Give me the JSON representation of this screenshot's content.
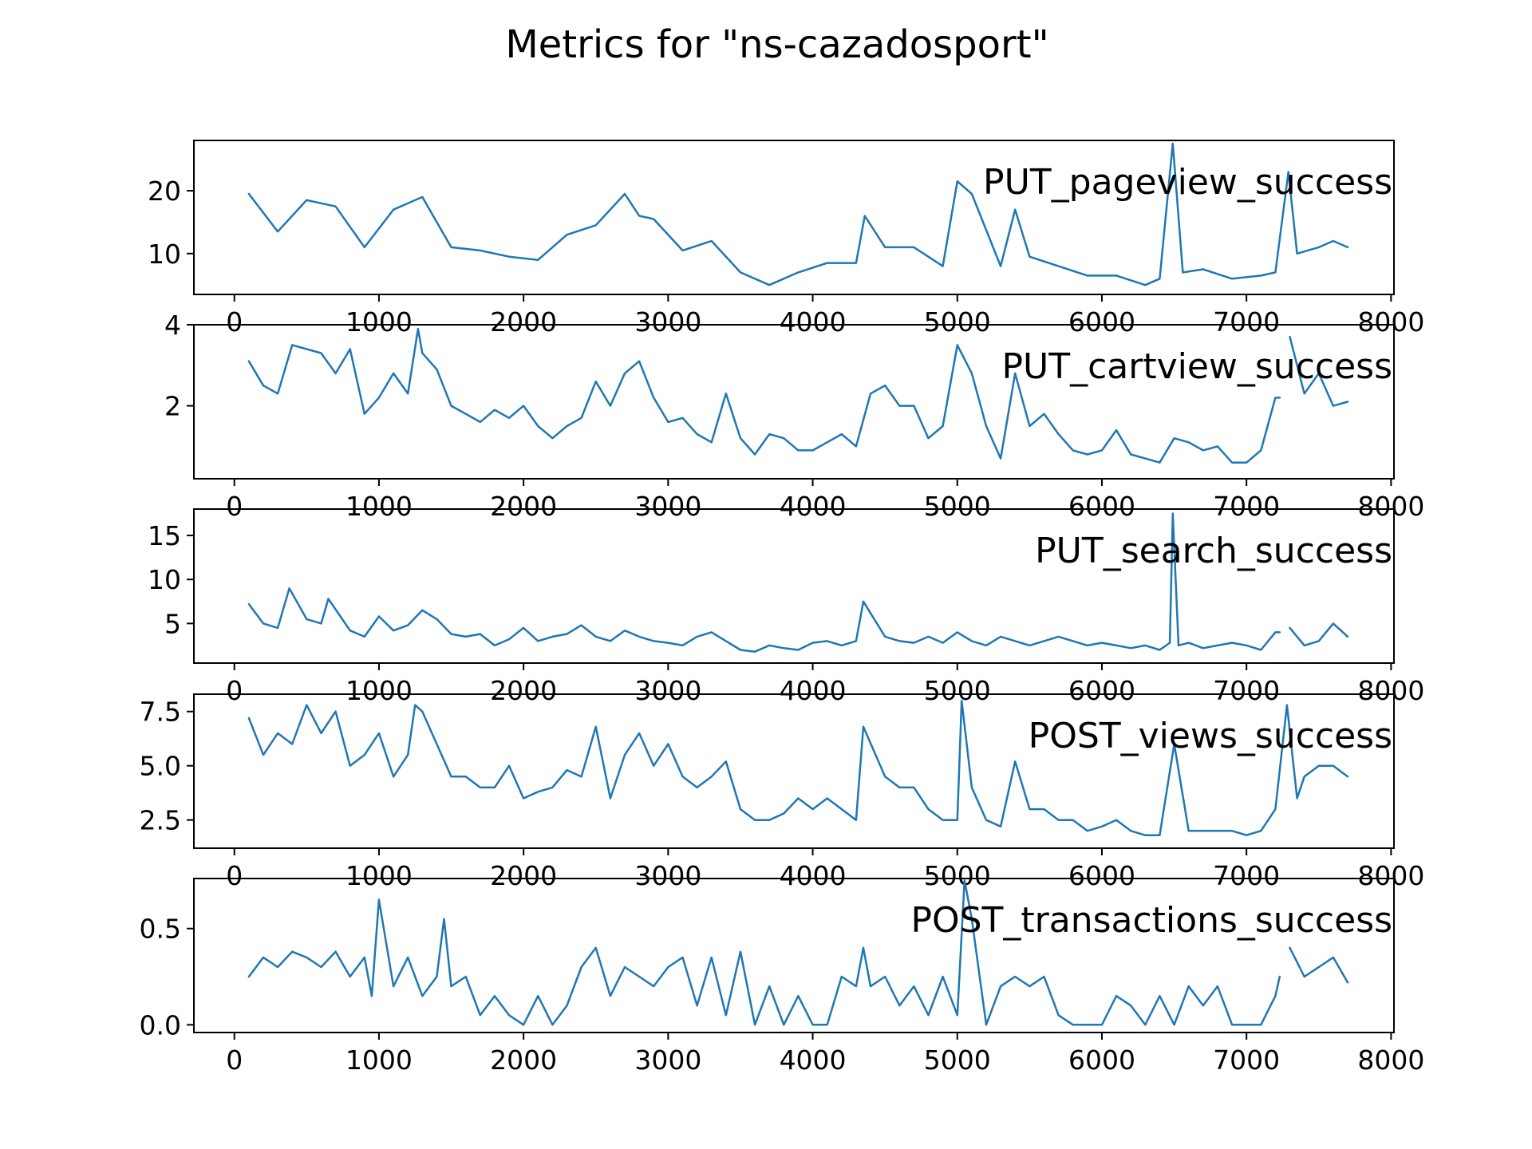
{
  "title": "Metrics for \"ns-cazadosport\"",
  "line_color": "#1f77b4",
  "chart_data": [
    {
      "type": "line",
      "name": "PUT_pageview_success",
      "xlim": [
        -280,
        8020
      ],
      "ylim": [
        3.5,
        28.0
      ],
      "xticks": [
        0,
        1000,
        2000,
        3000,
        4000,
        5000,
        6000,
        7000,
        8000
      ],
      "yticks": [
        10,
        20
      ],
      "ytick_labels": [
        "10",
        "20"
      ],
      "x": [
        100,
        300,
        500,
        700,
        900,
        1100,
        1300,
        1500,
        1700,
        1900,
        2100,
        2300,
        2500,
        2700,
        2800,
        2900,
        3100,
        3300,
        3500,
        3700,
        3900,
        4100,
        4300,
        4360,
        4500,
        4700,
        4900,
        5000,
        5100,
        5300,
        5400,
        5500,
        5700,
        5900,
        6100,
        6300,
        6400,
        6490,
        6560,
        6700,
        6900,
        7100,
        7200,
        7290,
        7350,
        7500,
        7600,
        7700
      ],
      "values": [
        19.5,
        13.5,
        18.5,
        17.5,
        11.0,
        17.0,
        19.0,
        11.0,
        10.5,
        9.5,
        9.0,
        13.0,
        14.5,
        19.5,
        16.0,
        15.5,
        10.5,
        12.0,
        7.0,
        5.0,
        7.0,
        8.5,
        8.5,
        16.0,
        11.0,
        11.0,
        8.0,
        21.5,
        19.5,
        8.0,
        17.0,
        9.5,
        8.0,
        6.5,
        6.5,
        5.0,
        6.0,
        27.5,
        7.0,
        7.5,
        6.0,
        6.5,
        7.0,
        23.0,
        10.0,
        11.0,
        12.0,
        11.0
      ]
    },
    {
      "type": "line",
      "name": "PUT_cartview_success",
      "xlim": [
        -280,
        8020
      ],
      "ylim": [
        0.2,
        4.0
      ],
      "xticks": [
        0,
        1000,
        2000,
        3000,
        4000,
        5000,
        6000,
        7000,
        8000
      ],
      "yticks": [
        2,
        4
      ],
      "ytick_labels": [
        "2",
        "4"
      ],
      "x": [
        100,
        200,
        300,
        400,
        500,
        600,
        700,
        800,
        900,
        1000,
        1100,
        1200,
        1270,
        1300,
        1400,
        1500,
        1600,
        1700,
        1800,
        1900,
        2000,
        2100,
        2200,
        2300,
        2400,
        2500,
        2600,
        2700,
        2800,
        2900,
        3000,
        3100,
        3200,
        3300,
        3400,
        3500,
        3600,
        3700,
        3800,
        3900,
        4000,
        4100,
        4200,
        4300,
        4400,
        4500,
        4600,
        4700,
        4800,
        4900,
        5000,
        5100,
        5200,
        5300,
        5400,
        5500,
        5600,
        5700,
        5800,
        5900,
        6000,
        6100,
        6200,
        6300,
        6400,
        6500,
        6600,
        6700,
        6800,
        6900,
        7000,
        7100,
        7200,
        7230,
        null,
        7300,
        7400,
        7500,
        7600,
        7700
      ],
      "values": [
        3.1,
        2.5,
        2.3,
        3.5,
        3.4,
        3.3,
        2.8,
        3.4,
        1.8,
        2.2,
        2.8,
        2.3,
        3.9,
        3.3,
        2.9,
        2.0,
        1.8,
        1.6,
        1.9,
        1.7,
        2.0,
        1.5,
        1.2,
        1.5,
        1.7,
        2.6,
        2.0,
        2.8,
        3.1,
        2.2,
        1.6,
        1.7,
        1.3,
        1.1,
        2.3,
        1.2,
        0.8,
        1.3,
        1.2,
        0.9,
        0.9,
        1.1,
        1.3,
        1.0,
        2.3,
        2.5,
        2.0,
        2.0,
        1.2,
        1.5,
        3.5,
        2.8,
        1.5,
        0.7,
        2.8,
        1.5,
        1.8,
        1.3,
        0.9,
        0.8,
        0.9,
        1.4,
        0.8,
        0.7,
        0.6,
        1.2,
        1.1,
        0.9,
        1.0,
        0.6,
        0.6,
        0.9,
        2.2,
        2.2,
        null,
        3.7,
        2.3,
        2.8,
        2.0,
        2.1
      ]
    },
    {
      "type": "line",
      "name": "PUT_search_success",
      "xlim": [
        -280,
        8020
      ],
      "ylim": [
        0.5,
        18.0
      ],
      "xticks": [
        0,
        1000,
        2000,
        3000,
        4000,
        5000,
        6000,
        7000,
        8000
      ],
      "yticks": [
        5,
        10,
        15
      ],
      "ytick_labels": [
        "5",
        "10",
        "15"
      ],
      "x": [
        100,
        200,
        300,
        380,
        500,
        600,
        650,
        800,
        900,
        1000,
        1100,
        1200,
        1300,
        1400,
        1500,
        1600,
        1700,
        1800,
        1900,
        2000,
        2100,
        2200,
        2300,
        2400,
        2500,
        2600,
        2700,
        2800,
        2900,
        3000,
        3100,
        3200,
        3300,
        3400,
        3500,
        3600,
        3700,
        3800,
        3900,
        4000,
        4100,
        4200,
        4300,
        4350,
        4500,
        4600,
        4700,
        4800,
        4900,
        5000,
        5100,
        5200,
        5300,
        5400,
        5500,
        5600,
        5700,
        5800,
        5900,
        6000,
        6100,
        6200,
        6300,
        6400,
        6470,
        6490,
        6530,
        6600,
        6700,
        6800,
        6900,
        7000,
        7100,
        7200,
        7230,
        null,
        7300,
        7400,
        7500,
        7600,
        7700
      ],
      "values": [
        7.2,
        5.0,
        4.5,
        9.0,
        5.5,
        5.0,
        7.8,
        4.2,
        3.5,
        5.8,
        4.2,
        4.8,
        6.5,
        5.5,
        3.8,
        3.5,
        3.8,
        2.5,
        3.2,
        4.5,
        3.0,
        3.5,
        3.8,
        4.8,
        3.5,
        3.0,
        4.2,
        3.5,
        3.0,
        2.8,
        2.5,
        3.5,
        4.0,
        3.0,
        2.0,
        1.8,
        2.5,
        2.2,
        2.0,
        2.8,
        3.0,
        2.5,
        3.0,
        7.5,
        3.5,
        3.0,
        2.8,
        3.5,
        2.8,
        4.0,
        3.0,
        2.5,
        3.5,
        3.0,
        2.5,
        3.0,
        3.5,
        3.0,
        2.5,
        2.8,
        2.5,
        2.2,
        2.5,
        2.0,
        2.8,
        17.5,
        2.5,
        2.8,
        2.2,
        2.5,
        2.8,
        2.5,
        2.0,
        4.0,
        4.0,
        null,
        4.5,
        2.5,
        3.0,
        5.0,
        3.5
      ]
    },
    {
      "type": "line",
      "name": "POST_views_success",
      "xlim": [
        -280,
        8020
      ],
      "ylim": [
        1.2,
        8.3
      ],
      "xticks": [
        0,
        1000,
        2000,
        3000,
        4000,
        5000,
        6000,
        7000,
        8000
      ],
      "yticks": [
        2.5,
        5.0,
        7.5
      ],
      "ytick_labels": [
        "2.5",
        "5.0",
        "7.5"
      ],
      "x": [
        100,
        200,
        300,
        400,
        500,
        600,
        700,
        800,
        900,
        1000,
        1100,
        1200,
        1250,
        1300,
        1400,
        1500,
        1600,
        1700,
        1800,
        1900,
        2000,
        2100,
        2200,
        2300,
        2400,
        2500,
        2600,
        2700,
        2800,
        2900,
        3000,
        3100,
        3200,
        3300,
        3400,
        3500,
        3600,
        3700,
        3800,
        3900,
        4000,
        4100,
        4200,
        4300,
        4350,
        4500,
        4600,
        4700,
        4800,
        4900,
        5000,
        5030,
        5100,
        5200,
        5300,
        5400,
        5500,
        5600,
        5700,
        5800,
        5900,
        6000,
        6100,
        6200,
        6300,
        6400,
        6500,
        6600,
        6700,
        6800,
        6900,
        7000,
        7100,
        7200,
        7280,
        7350,
        7400,
        7500,
        7600,
        7700
      ],
      "values": [
        7.2,
        5.5,
        6.5,
        6.0,
        7.8,
        6.5,
        7.5,
        5.0,
        5.5,
        6.5,
        4.5,
        5.5,
        7.8,
        7.5,
        6.0,
        4.5,
        4.5,
        4.0,
        4.0,
        5.0,
        3.5,
        3.8,
        4.0,
        4.8,
        4.5,
        6.8,
        3.5,
        5.5,
        6.5,
        5.0,
        6.0,
        4.5,
        4.0,
        4.5,
        5.2,
        3.0,
        2.5,
        2.5,
        2.8,
        3.5,
        3.0,
        3.5,
        3.0,
        2.5,
        6.8,
        4.5,
        4.0,
        4.0,
        3.0,
        2.5,
        2.5,
        8.0,
        4.0,
        2.5,
        2.2,
        5.2,
        3.0,
        3.0,
        2.5,
        2.5,
        2.0,
        2.2,
        2.5,
        2.0,
        1.8,
        1.8,
        6.0,
        2.0,
        2.0,
        2.0,
        2.0,
        1.8,
        2.0,
        3.0,
        7.8,
        3.5,
        4.5,
        5.0,
        5.0,
        4.5
      ]
    },
    {
      "type": "line",
      "name": "POST_transactions_success",
      "xlim": [
        -280,
        8020
      ],
      "ylim": [
        -0.04,
        0.76
      ],
      "xticks": [
        0,
        1000,
        2000,
        3000,
        4000,
        5000,
        6000,
        7000,
        8000
      ],
      "yticks": [
        0.0,
        0.5
      ],
      "ytick_labels": [
        "0.0",
        "0.5"
      ],
      "x": [
        100,
        200,
        300,
        400,
        500,
        600,
        700,
        800,
        900,
        950,
        1000,
        1100,
        1200,
        1300,
        1400,
        1450,
        1500,
        1600,
        1700,
        1800,
        1900,
        2000,
        2100,
        2200,
        2300,
        2400,
        2500,
        2600,
        2700,
        2800,
        2900,
        3000,
        3100,
        3200,
        3300,
        3400,
        3500,
        3600,
        3700,
        3800,
        3900,
        4000,
        4100,
        4200,
        4300,
        4350,
        4400,
        4500,
        4600,
        4700,
        4800,
        4900,
        5000,
        5050,
        5100,
        5200,
        5300,
        5400,
        5500,
        5600,
        5700,
        5800,
        5900,
        6000,
        6100,
        6200,
        6300,
        6400,
        6500,
        6600,
        6700,
        6800,
        6900,
        7000,
        7100,
        7200,
        7230,
        null,
        7300,
        7400,
        7500,
        7600,
        7700
      ],
      "values": [
        0.25,
        0.35,
        0.3,
        0.38,
        0.35,
        0.3,
        0.38,
        0.25,
        0.35,
        0.15,
        0.65,
        0.2,
        0.35,
        0.15,
        0.25,
        0.55,
        0.2,
        0.25,
        0.05,
        0.15,
        0.05,
        0.0,
        0.15,
        0.0,
        0.1,
        0.3,
        0.4,
        0.15,
        0.3,
        0.25,
        0.2,
        0.3,
        0.35,
        0.1,
        0.35,
        0.05,
        0.38,
        0.0,
        0.2,
        0.0,
        0.15,
        0.0,
        0.0,
        0.25,
        0.2,
        0.4,
        0.2,
        0.25,
        0.1,
        0.2,
        0.05,
        0.25,
        0.05,
        0.75,
        0.55,
        0.0,
        0.2,
        0.25,
        0.2,
        0.25,
        0.05,
        0.0,
        0.0,
        0.0,
        0.15,
        0.1,
        0.0,
        0.15,
        0.0,
        0.2,
        0.1,
        0.2,
        0.0,
        0.0,
        0.0,
        0.15,
        0.25,
        null,
        0.4,
        0.25,
        0.3,
        0.35,
        0.22
      ]
    }
  ]
}
